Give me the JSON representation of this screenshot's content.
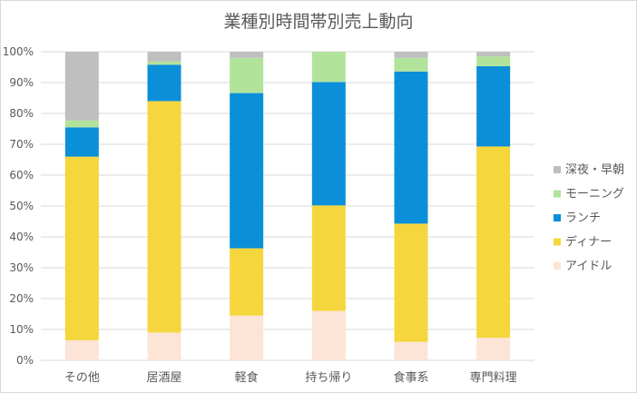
{
  "chart_data": {
    "type": "bar",
    "stacked": "percent",
    "title": "業種別時間帯別売上動向",
    "categories": [
      "その他",
      "居酒屋",
      "軽食",
      "持ち帰り",
      "食事系",
      "専門料理"
    ],
    "y_ticks": [
      "0%",
      "10%",
      "20%",
      "30%",
      "40%",
      "50%",
      "60%",
      "70%",
      "80%",
      "90%",
      "100%"
    ],
    "ylim": [
      0,
      100
    ],
    "grid": true,
    "legend_position": "right",
    "series": [
      {
        "name": "アイドル",
        "color": "#fce4d6",
        "values": [
          6.5,
          9,
          14.5,
          16,
          6,
          7.3
        ]
      },
      {
        "name": "ディナー",
        "color": "#f5d63d",
        "values": [
          59.5,
          75,
          21.8,
          34.2,
          38.3,
          62
        ]
      },
      {
        "name": "ランチ",
        "color": "#0b8fd8",
        "values": [
          9.5,
          11.8,
          50.3,
          40,
          49.3,
          26
        ]
      },
      {
        "name": "モーニング",
        "color": "#b2e39b",
        "values": [
          2.2,
          1,
          11.4,
          9.8,
          4.4,
          3.2
        ]
      },
      {
        "name": "深夜・早朝",
        "color": "#bfbfbf",
        "values": [
          22.3,
          3.2,
          2,
          0,
          2,
          1.5
        ]
      }
    ],
    "legend_order": [
      "深夜・早朝",
      "モーニング",
      "ランチ",
      "ディナー",
      "アイドル"
    ]
  }
}
